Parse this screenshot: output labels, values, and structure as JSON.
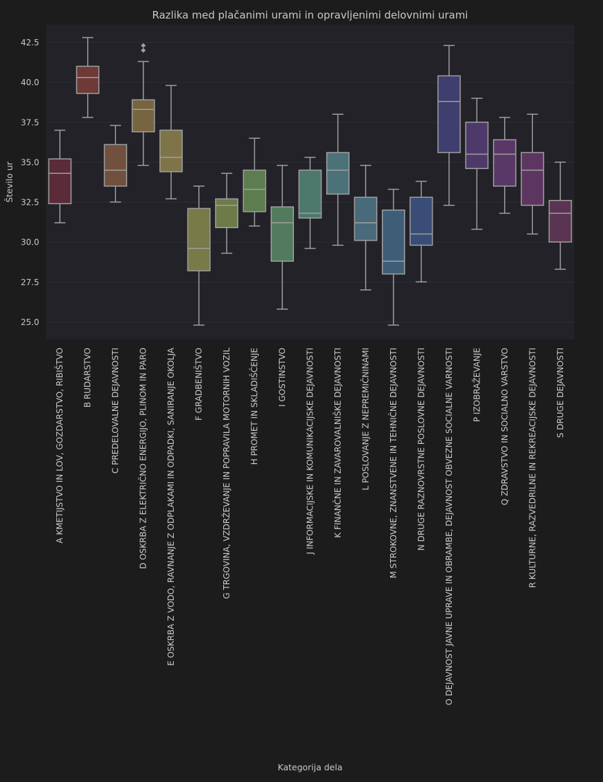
{
  "chart_data": {
    "type": "boxplot",
    "title": "Razlika med plačanimi urami in opravljenimi delovnimi urami",
    "xlabel": "Kategorija dela",
    "ylabel": "Število ur",
    "ylim": [
      23.9,
      43.6
    ],
    "yticks": [
      25.0,
      27.5,
      30.0,
      32.5,
      35.0,
      37.5,
      40.0,
      42.5
    ],
    "grid": true,
    "categories": [
      {
        "label": "A KMETIJSTVO IN LOV, GOZDARSTVO, RIBIŠTVO",
        "whisker_low": 31.2,
        "q1": 32.4,
        "median": 34.3,
        "q3": 35.2,
        "whisker_high": 37.0,
        "outliers": [],
        "color": "#5a2b38"
      },
      {
        "label": "B RUDARSTVO",
        "whisker_low": 37.8,
        "q1": 39.3,
        "median": 40.3,
        "q3": 41.0,
        "whisker_high": 42.8,
        "outliers": [],
        "color": "#6e3a35"
      },
      {
        "label": "C PREDELOVALNE DEJAVNOSTI",
        "whisker_low": 32.5,
        "q1": 33.5,
        "median": 34.5,
        "q3": 36.1,
        "whisker_high": 37.3,
        "outliers": [],
        "color": "#71503e"
      },
      {
        "label": "D OSKRBA Z ELEKTRIČNO ENERGIJO, PLINOM IN PARO",
        "whisker_low": 34.8,
        "q1": 36.9,
        "median": 38.3,
        "q3": 38.9,
        "whisker_high": 41.3,
        "outliers": [
          42.0,
          42.3
        ],
        "color": "#776441"
      },
      {
        "label": "E OSKRBA Z VODO, RAVNANJE Z ODPLAKAMI IN ODPADKI, SANIRANJE OKOLJA",
        "whisker_low": 32.7,
        "q1": 34.4,
        "median": 35.3,
        "q3": 37.0,
        "whisker_high": 39.8,
        "outliers": [],
        "color": "#7e7447"
      },
      {
        "label": "F GRADBENIŠTVO",
        "whisker_low": 24.8,
        "q1": 28.2,
        "median": 29.6,
        "q3": 32.1,
        "whisker_high": 33.5,
        "outliers": [],
        "color": "#787a48"
      },
      {
        "label": "G TRGOVINA, VZDRŽEVANJE IN POPRAVILA MOTORNIH VOZIL",
        "whisker_low": 29.3,
        "q1": 30.9,
        "median": 32.3,
        "q3": 32.7,
        "whisker_high": 34.3,
        "outliers": [],
        "color": "#6d7b49"
      },
      {
        "label": "H PROMET IN SKLADIŠČENJE",
        "whisker_low": 31.0,
        "q1": 31.9,
        "median": 33.3,
        "q3": 34.5,
        "whisker_high": 36.5,
        "outliers": [],
        "color": "#5d7c50"
      },
      {
        "label": "I GOSTINSTVO",
        "whisker_low": 25.8,
        "q1": 28.8,
        "median": 31.2,
        "q3": 32.2,
        "whisker_high": 34.8,
        "outliers": [],
        "color": "#527b5d"
      },
      {
        "label": "J INFORMACIJSKE IN KOMUNIKACIJSKE DEJAVNOSTI",
        "whisker_low": 29.6,
        "q1": 31.5,
        "median": 31.8,
        "q3": 34.5,
        "whisker_high": 35.3,
        "outliers": [],
        "color": "#4d786c"
      },
      {
        "label": "K FINANČNE IN ZAVAROVALNIŠKE DEJAVNOSTI",
        "whisker_low": 29.8,
        "q1": 33.0,
        "median": 34.5,
        "q3": 35.6,
        "whisker_high": 38.0,
        "outliers": [],
        "color": "#4c7279"
      },
      {
        "label": "L POSLOVANJE Z NEPREMIČNINAMI",
        "whisker_low": 27.0,
        "q1": 30.1,
        "median": 31.2,
        "q3": 32.8,
        "whisker_high": 34.8,
        "outliers": [],
        "color": "#486a7a"
      },
      {
        "label": "M STROKOVNE, ZNANSTVENE IN TEHNIČNE DEJAVNOSTI",
        "whisker_low": 24.8,
        "q1": 28.0,
        "median": 28.8,
        "q3": 32.0,
        "whisker_high": 33.3,
        "outliers": [],
        "color": "#3e5e78"
      },
      {
        "label": "N DRUGE RAZNOVRSTNE POSLOVNE DEJAVNOSTI",
        "whisker_low": 27.5,
        "q1": 29.8,
        "median": 30.5,
        "q3": 32.8,
        "whisker_high": 33.8,
        "outliers": [],
        "color": "#394d76"
      },
      {
        "label": "O DEJAVNOST JAVNE UPRAVE IN OBRAMBE, DEJAVNOST OBVEZNE SOCIALNE VARNOSTI",
        "whisker_low": 32.3,
        "q1": 35.6,
        "median": 38.8,
        "q3": 40.4,
        "whisker_high": 42.3,
        "outliers": [],
        "color": "#3e3f6e"
      },
      {
        "label": "P IZOBRAŽEVANJE",
        "whisker_low": 30.8,
        "q1": 34.6,
        "median": 35.5,
        "q3": 37.5,
        "whisker_high": 39.0,
        "outliers": [],
        "color": "#4e3a6a"
      },
      {
        "label": "Q ZDRAVSTVO IN SOCIALNO VARSTVO",
        "whisker_low": 31.8,
        "q1": 33.5,
        "median": 35.5,
        "q3": 36.4,
        "whisker_high": 37.8,
        "outliers": [],
        "color": "#593868"
      },
      {
        "label": "R KULTURNE, RAZVEDRILNE IN REKREACIJSKE DEJAVNOSTI",
        "whisker_low": 30.5,
        "q1": 32.3,
        "median": 34.5,
        "q3": 35.6,
        "whisker_high": 38.0,
        "outliers": [],
        "color": "#5c3660"
      },
      {
        "label": "S DRUGE DEJAVNOSTI",
        "whisker_low": 28.3,
        "q1": 30.0,
        "median": 31.8,
        "q3": 32.6,
        "whisker_high": 35.0,
        "outliers": [],
        "color": "#5a3452"
      }
    ],
    "colors": {
      "background": "#1c1c1d",
      "plot_background": "#232228",
      "grid": "#2e2d34",
      "text": "#c9c9c9",
      "box_edge": "#a0a0a0"
    }
  }
}
